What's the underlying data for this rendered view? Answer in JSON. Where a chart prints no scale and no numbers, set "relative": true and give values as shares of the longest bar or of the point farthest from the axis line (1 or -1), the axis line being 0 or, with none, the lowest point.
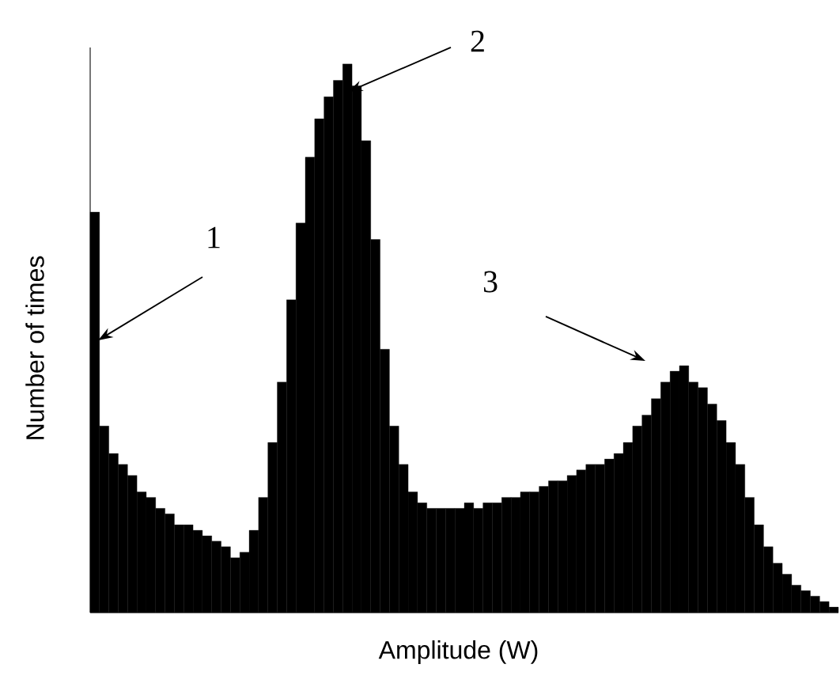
{
  "chart_data": {
    "type": "bar",
    "relative": true,
    "xlabel": "Amplitude (W)",
    "ylabel": "Number of times",
    "color": "#000000",
    "categories": [
      null,
      null,
      null,
      null,
      null,
      null,
      null,
      null,
      null,
      null,
      null,
      null,
      null,
      null,
      null,
      null,
      null,
      null,
      null,
      null,
      null,
      null,
      null,
      null,
      null,
      null,
      null,
      null,
      null,
      null,
      null,
      null,
      null,
      null,
      null,
      null,
      null,
      null,
      null,
      null,
      null,
      null,
      null,
      null,
      null,
      null,
      null,
      null,
      null,
      null,
      null,
      null,
      null,
      null,
      null,
      null,
      null,
      null,
      null,
      null,
      null,
      null,
      null,
      null,
      null,
      null,
      null,
      null,
      null,
      null,
      null,
      null,
      null,
      null,
      null,
      null,
      null,
      null,
      null,
      null
    ],
    "values": [
      0.73,
      0.34,
      0.29,
      0.27,
      0.25,
      0.22,
      0.21,
      0.19,
      0.18,
      0.16,
      0.16,
      0.15,
      0.14,
      0.13,
      0.12,
      0.1,
      0.11,
      0.15,
      0.21,
      0.31,
      0.42,
      0.57,
      0.71,
      0.83,
      0.9,
      0.94,
      0.97,
      1.0,
      0.96,
      0.86,
      0.68,
      0.48,
      0.34,
      0.27,
      0.22,
      0.2,
      0.19,
      0.19,
      0.19,
      0.19,
      0.2,
      0.19,
      0.2,
      0.2,
      0.21,
      0.21,
      0.22,
      0.22,
      0.23,
      0.24,
      0.24,
      0.25,
      0.26,
      0.27,
      0.27,
      0.28,
      0.29,
      0.31,
      0.34,
      0.36,
      0.39,
      0.42,
      0.44,
      0.45,
      0.42,
      0.41,
      0.38,
      0.35,
      0.31,
      0.27,
      0.21,
      0.16,
      0.12,
      0.09,
      0.07,
      0.05,
      0.04,
      0.03,
      0.02,
      0.01
    ],
    "annotations": [
      "1",
      "2",
      "3"
    ]
  }
}
